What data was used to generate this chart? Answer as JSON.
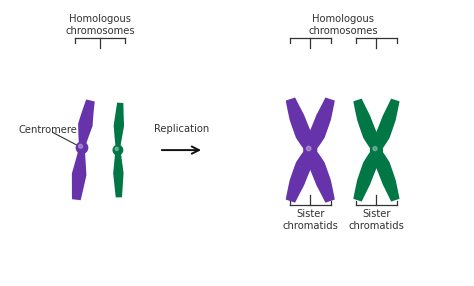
{
  "bg_color": "#ffffff",
  "purple": "#6633aa",
  "purple_light": "#7744bb",
  "purple_dark": "#442288",
  "green": "#007744",
  "green_light": "#009955",
  "green_dark": "#005533",
  "arrow_color": "#111111",
  "text_color": "#333333",
  "label_homologous_left": "Homologous\nchromosomes",
  "label_homologous_right": "Homologous\nchromosomes",
  "label_centromere": "Centromere",
  "label_replication": "Replication",
  "label_sister_left": "Sister\nchromatids",
  "label_sister_right": "Sister\nchromatids",
  "figsize": [
    4.74,
    2.86
  ],
  "dpi": 100
}
